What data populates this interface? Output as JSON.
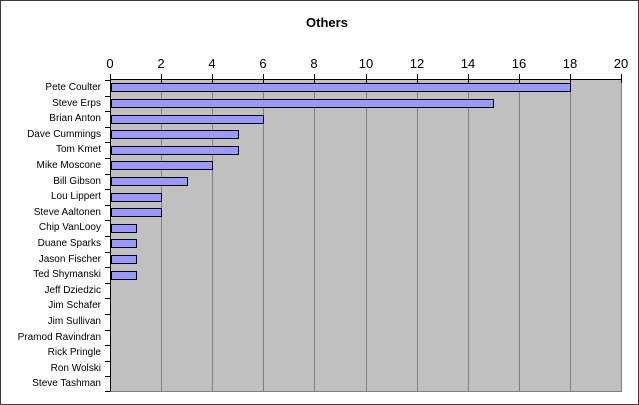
{
  "chart_data": {
    "type": "bar",
    "orientation": "horizontal",
    "title": "Others",
    "categories": [
      "Pete Coulter",
      "Steve Erps",
      "Brian Anton",
      "Dave Cummings",
      "Tom Kmet",
      "Mike Moscone",
      "Bill Gibson",
      "Lou Lippert",
      "Steve Aaltonen",
      "Chip VanLooy",
      "Duane Sparks",
      "Jason Fischer",
      "Ted Shymanski",
      "Jeff Dziedzic",
      "Jim Schafer",
      "Jim Sullivan",
      "Pramod Ravindran",
      "Rick Pringle",
      "Ron Wolski",
      "Steve Tashman"
    ],
    "values": [
      18,
      15,
      6,
      5,
      5,
      4,
      3,
      2,
      2,
      1,
      1,
      1,
      1,
      0,
      0,
      0,
      0,
      0,
      0,
      0
    ],
    "xlabel": "",
    "ylabel": "",
    "xlim": [
      0,
      20
    ],
    "x_ticks": [
      0,
      2,
      4,
      6,
      8,
      10,
      12,
      14,
      16,
      18,
      20
    ],
    "grid": true,
    "legend": false,
    "colors": {
      "bar_fill": "#9999FF",
      "bar_border": "#000000",
      "plot_background": "#C0C0C0",
      "gridline": "#808080",
      "axis_line": "#000000",
      "chart_background": "#FFFFFF",
      "text": "#000000"
    }
  }
}
